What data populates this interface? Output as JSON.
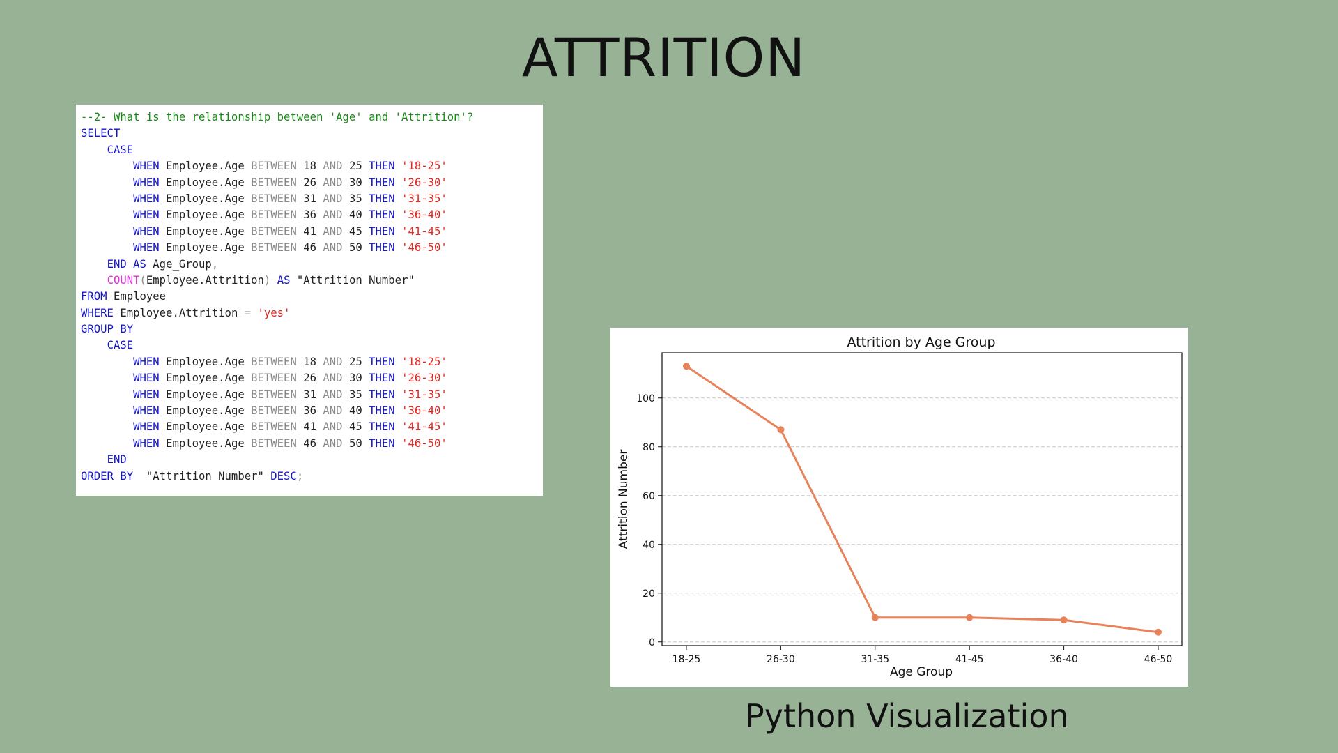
{
  "slide": {
    "title": "ATTRITION",
    "caption": "Python Visualization"
  },
  "colors": {
    "background": "#97b295",
    "keyword": "#1414c8",
    "operator": "#8a8a8a",
    "string": "#e0251f",
    "function": "#e030d8",
    "comment": "#178a17",
    "series_line": "#e8825a"
  },
  "code": {
    "lines": [
      [
        {
          "t": "cm",
          "v": "--2- What is the relationship between 'Age' and 'Attrition'?"
        }
      ],
      [
        {
          "t": "kw",
          "v": "SELECT"
        }
      ],
      [
        {
          "t": "tx",
          "v": "    "
        },
        {
          "t": "kw",
          "v": "CASE"
        }
      ],
      [
        {
          "t": "tx",
          "v": "        "
        },
        {
          "t": "kw",
          "v": "WHEN"
        },
        {
          "t": "tx",
          "v": " Employee.Age "
        },
        {
          "t": "op",
          "v": "BETWEEN"
        },
        {
          "t": "tx",
          "v": " 18 "
        },
        {
          "t": "op",
          "v": "AND"
        },
        {
          "t": "tx",
          "v": " 25 "
        },
        {
          "t": "kw",
          "v": "THEN"
        },
        {
          "t": "tx",
          "v": " "
        },
        {
          "t": "str",
          "v": "'18-25'"
        }
      ],
      [
        {
          "t": "tx",
          "v": "        "
        },
        {
          "t": "kw",
          "v": "WHEN"
        },
        {
          "t": "tx",
          "v": " Employee.Age "
        },
        {
          "t": "op",
          "v": "BETWEEN"
        },
        {
          "t": "tx",
          "v": " 26 "
        },
        {
          "t": "op",
          "v": "AND"
        },
        {
          "t": "tx",
          "v": " 30 "
        },
        {
          "t": "kw",
          "v": "THEN"
        },
        {
          "t": "tx",
          "v": " "
        },
        {
          "t": "str",
          "v": "'26-30'"
        }
      ],
      [
        {
          "t": "tx",
          "v": "        "
        },
        {
          "t": "kw",
          "v": "WHEN"
        },
        {
          "t": "tx",
          "v": " Employee.Age "
        },
        {
          "t": "op",
          "v": "BETWEEN"
        },
        {
          "t": "tx",
          "v": " 31 "
        },
        {
          "t": "op",
          "v": "AND"
        },
        {
          "t": "tx",
          "v": " 35 "
        },
        {
          "t": "kw",
          "v": "THEN"
        },
        {
          "t": "tx",
          "v": " "
        },
        {
          "t": "str",
          "v": "'31-35'"
        }
      ],
      [
        {
          "t": "tx",
          "v": "        "
        },
        {
          "t": "kw",
          "v": "WHEN"
        },
        {
          "t": "tx",
          "v": " Employee.Age "
        },
        {
          "t": "op",
          "v": "BETWEEN"
        },
        {
          "t": "tx",
          "v": " 36 "
        },
        {
          "t": "op",
          "v": "AND"
        },
        {
          "t": "tx",
          "v": " 40 "
        },
        {
          "t": "kw",
          "v": "THEN"
        },
        {
          "t": "tx",
          "v": " "
        },
        {
          "t": "str",
          "v": "'36-40'"
        }
      ],
      [
        {
          "t": "tx",
          "v": "        "
        },
        {
          "t": "kw",
          "v": "WHEN"
        },
        {
          "t": "tx",
          "v": " Employee.Age "
        },
        {
          "t": "op",
          "v": "BETWEEN"
        },
        {
          "t": "tx",
          "v": " 41 "
        },
        {
          "t": "op",
          "v": "AND"
        },
        {
          "t": "tx",
          "v": " 45 "
        },
        {
          "t": "kw",
          "v": "THEN"
        },
        {
          "t": "tx",
          "v": " "
        },
        {
          "t": "str",
          "v": "'41-45'"
        }
      ],
      [
        {
          "t": "tx",
          "v": "        "
        },
        {
          "t": "kw",
          "v": "WHEN"
        },
        {
          "t": "tx",
          "v": " Employee.Age "
        },
        {
          "t": "op",
          "v": "BETWEEN"
        },
        {
          "t": "tx",
          "v": " 46 "
        },
        {
          "t": "op",
          "v": "AND"
        },
        {
          "t": "tx",
          "v": " 50 "
        },
        {
          "t": "kw",
          "v": "THEN"
        },
        {
          "t": "tx",
          "v": " "
        },
        {
          "t": "str",
          "v": "'46-50'"
        }
      ],
      [
        {
          "t": "tx",
          "v": "    "
        },
        {
          "t": "kw",
          "v": "END AS"
        },
        {
          "t": "tx",
          "v": " Age_Group"
        },
        {
          "t": "op",
          "v": ","
        }
      ],
      [
        {
          "t": "tx",
          "v": "    "
        },
        {
          "t": "fn",
          "v": "COUNT"
        },
        {
          "t": "op",
          "v": "("
        },
        {
          "t": "tx",
          "v": "Employee.Attrition"
        },
        {
          "t": "op",
          "v": ")"
        },
        {
          "t": "tx",
          "v": " "
        },
        {
          "t": "kw",
          "v": "AS"
        },
        {
          "t": "tx",
          "v": " \"Attrition Number\""
        }
      ],
      [
        {
          "t": "kw",
          "v": "FROM"
        },
        {
          "t": "tx",
          "v": " Employee"
        }
      ],
      [
        {
          "t": "kw",
          "v": "WHERE"
        },
        {
          "t": "tx",
          "v": " Employee.Attrition "
        },
        {
          "t": "op",
          "v": "="
        },
        {
          "t": "tx",
          "v": " "
        },
        {
          "t": "str",
          "v": "'yes'"
        }
      ],
      [
        {
          "t": "kw",
          "v": "GROUP BY"
        }
      ],
      [
        {
          "t": "tx",
          "v": "    "
        },
        {
          "t": "kw",
          "v": "CASE"
        }
      ],
      [
        {
          "t": "tx",
          "v": "        "
        },
        {
          "t": "kw",
          "v": "WHEN"
        },
        {
          "t": "tx",
          "v": " Employee.Age "
        },
        {
          "t": "op",
          "v": "BETWEEN"
        },
        {
          "t": "tx",
          "v": " 18 "
        },
        {
          "t": "op",
          "v": "AND"
        },
        {
          "t": "tx",
          "v": " 25 "
        },
        {
          "t": "kw",
          "v": "THEN"
        },
        {
          "t": "tx",
          "v": " "
        },
        {
          "t": "str",
          "v": "'18-25'"
        }
      ],
      [
        {
          "t": "tx",
          "v": "        "
        },
        {
          "t": "kw",
          "v": "WHEN"
        },
        {
          "t": "tx",
          "v": " Employee.Age "
        },
        {
          "t": "op",
          "v": "BETWEEN"
        },
        {
          "t": "tx",
          "v": " 26 "
        },
        {
          "t": "op",
          "v": "AND"
        },
        {
          "t": "tx",
          "v": " 30 "
        },
        {
          "t": "kw",
          "v": "THEN"
        },
        {
          "t": "tx",
          "v": " "
        },
        {
          "t": "str",
          "v": "'26-30'"
        }
      ],
      [
        {
          "t": "tx",
          "v": "        "
        },
        {
          "t": "kw",
          "v": "WHEN"
        },
        {
          "t": "tx",
          "v": " Employee.Age "
        },
        {
          "t": "op",
          "v": "BETWEEN"
        },
        {
          "t": "tx",
          "v": " 31 "
        },
        {
          "t": "op",
          "v": "AND"
        },
        {
          "t": "tx",
          "v": " 35 "
        },
        {
          "t": "kw",
          "v": "THEN"
        },
        {
          "t": "tx",
          "v": " "
        },
        {
          "t": "str",
          "v": "'31-35'"
        }
      ],
      [
        {
          "t": "tx",
          "v": "        "
        },
        {
          "t": "kw",
          "v": "WHEN"
        },
        {
          "t": "tx",
          "v": " Employee.Age "
        },
        {
          "t": "op",
          "v": "BETWEEN"
        },
        {
          "t": "tx",
          "v": " 36 "
        },
        {
          "t": "op",
          "v": "AND"
        },
        {
          "t": "tx",
          "v": " 40 "
        },
        {
          "t": "kw",
          "v": "THEN"
        },
        {
          "t": "tx",
          "v": " "
        },
        {
          "t": "str",
          "v": "'36-40'"
        }
      ],
      [
        {
          "t": "tx",
          "v": "        "
        },
        {
          "t": "kw",
          "v": "WHEN"
        },
        {
          "t": "tx",
          "v": " Employee.Age "
        },
        {
          "t": "op",
          "v": "BETWEEN"
        },
        {
          "t": "tx",
          "v": " 41 "
        },
        {
          "t": "op",
          "v": "AND"
        },
        {
          "t": "tx",
          "v": " 45 "
        },
        {
          "t": "kw",
          "v": "THEN"
        },
        {
          "t": "tx",
          "v": " "
        },
        {
          "t": "str",
          "v": "'41-45'"
        }
      ],
      [
        {
          "t": "tx",
          "v": "        "
        },
        {
          "t": "kw",
          "v": "WHEN"
        },
        {
          "t": "tx",
          "v": " Employee.Age "
        },
        {
          "t": "op",
          "v": "BETWEEN"
        },
        {
          "t": "tx",
          "v": " 46 "
        },
        {
          "t": "op",
          "v": "AND"
        },
        {
          "t": "tx",
          "v": " 50 "
        },
        {
          "t": "kw",
          "v": "THEN"
        },
        {
          "t": "tx",
          "v": " "
        },
        {
          "t": "str",
          "v": "'46-50'"
        }
      ],
      [
        {
          "t": "tx",
          "v": "    "
        },
        {
          "t": "kw",
          "v": "END"
        }
      ],
      [
        {
          "t": "kw",
          "v": "ORDER BY"
        },
        {
          "t": "tx",
          "v": "  \"Attrition Number\" "
        },
        {
          "t": "kw",
          "v": "DESC"
        },
        {
          "t": "op",
          "v": ";"
        }
      ]
    ]
  },
  "chart_data": {
    "type": "line",
    "title": "Attrition by Age Group",
    "xlabel": "Age Group",
    "ylabel": "Attrition Number",
    "categories": [
      "18-25",
      "26-30",
      "31-35",
      "41-45",
      "36-40",
      "46-50"
    ],
    "values": [
      113,
      87,
      10,
      10,
      9,
      4
    ],
    "yticks": [
      0,
      20,
      40,
      60,
      80,
      100
    ],
    "ylim": [
      -1.5,
      118.5
    ],
    "grid": "y-dashed",
    "legend": "none",
    "color": "#e8825a"
  }
}
